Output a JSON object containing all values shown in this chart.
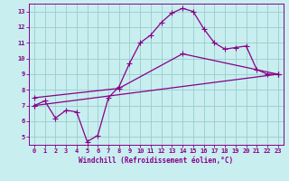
{
  "xlabel": "Windchill (Refroidissement éolien,°C)",
  "ylabel": "",
  "bg_color": "#c8eef0",
  "line_color": "#880088",
  "grid_color": "#99cccc",
  "xlim": [
    -0.5,
    23.5
  ],
  "ylim": [
    4.5,
    13.5
  ],
  "xticks": [
    0,
    1,
    2,
    3,
    4,
    5,
    6,
    7,
    8,
    9,
    10,
    11,
    12,
    13,
    14,
    15,
    16,
    17,
    18,
    19,
    20,
    21,
    22,
    23
  ],
  "yticks": [
    5,
    6,
    7,
    8,
    9,
    10,
    11,
    12,
    13
  ],
  "curve1_x": [
    0,
    1,
    2,
    3,
    4,
    5,
    6,
    7,
    8,
    9,
    10,
    11,
    12,
    13,
    14,
    15,
    16,
    17,
    18,
    19,
    20,
    21,
    22,
    23
  ],
  "curve1_y": [
    7.0,
    7.3,
    6.2,
    6.7,
    6.6,
    4.7,
    5.1,
    7.5,
    8.2,
    9.7,
    11.0,
    11.5,
    12.3,
    12.9,
    13.2,
    13.0,
    11.9,
    11.0,
    10.6,
    10.7,
    10.8,
    9.3,
    9.0,
    9.0
  ],
  "curve2_x": [
    0,
    23
  ],
  "curve2_y": [
    7.0,
    9.0
  ],
  "curve3_x": [
    0,
    8,
    14,
    23
  ],
  "curve3_y": [
    7.5,
    8.1,
    10.3,
    9.0
  ],
  "marker": "+",
  "markersize": 4,
  "linewidth": 0.9
}
